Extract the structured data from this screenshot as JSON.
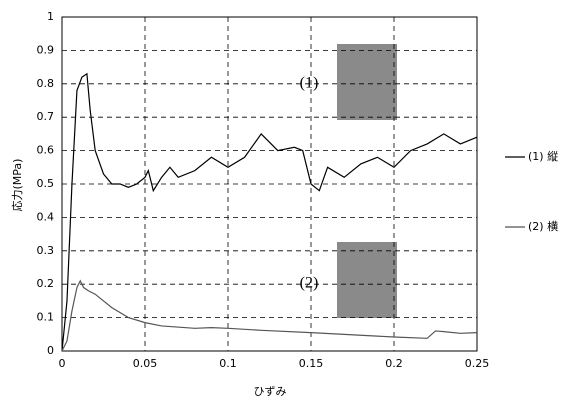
{
  "chart_data": {
    "type": "line",
    "xlabel": "ひずみ",
    "ylabel": "応力(MPa)",
    "annotations": [
      "(1)",
      "(2)"
    ],
    "series": [
      {
        "name": "(1) 縦",
        "color": "#000000",
        "x": [
          0,
          0.003,
          0.006,
          0.009,
          0.012,
          0.015,
          0.017,
          0.02,
          0.025,
          0.03,
          0.035,
          0.04,
          0.045,
          0.05,
          0.052,
          0.055,
          0.06,
          0.065,
          0.07,
          0.08,
          0.09,
          0.1,
          0.11,
          0.12,
          0.13,
          0.14,
          0.145,
          0.15,
          0.155,
          0.16,
          0.17,
          0.18,
          0.19,
          0.2,
          0.21,
          0.22,
          0.23,
          0.24,
          0.25
        ],
        "values": [
          0,
          0.15,
          0.5,
          0.78,
          0.82,
          0.83,
          0.72,
          0.6,
          0.53,
          0.5,
          0.5,
          0.49,
          0.5,
          0.52,
          0.54,
          0.48,
          0.52,
          0.55,
          0.52,
          0.54,
          0.58,
          0.55,
          0.58,
          0.65,
          0.6,
          0.61,
          0.6,
          0.5,
          0.48,
          0.55,
          0.52,
          0.56,
          0.58,
          0.55,
          0.6,
          0.62,
          0.65,
          0.62,
          0.64
        ]
      },
      {
        "name": "(2) 横",
        "color": "#555555",
        "x": [
          0,
          0.003,
          0.006,
          0.009,
          0.011,
          0.013,
          0.016,
          0.02,
          0.03,
          0.04,
          0.05,
          0.06,
          0.08,
          0.09,
          0.1,
          0.12,
          0.15,
          0.2,
          0.22,
          0.225,
          0.23,
          0.24,
          0.25
        ],
        "values": [
          0,
          0.03,
          0.12,
          0.19,
          0.21,
          0.19,
          0.18,
          0.17,
          0.13,
          0.1,
          0.085,
          0.075,
          0.068,
          0.07,
          0.068,
          0.062,
          0.055,
          0.042,
          0.038,
          0.06,
          0.058,
          0.053,
          0.055
        ]
      }
    ],
    "xlim": [
      0,
      0.25
    ],
    "xticks": [
      0,
      0.05,
      0.1,
      0.15,
      0.2,
      0.25
    ],
    "ylim": [
      0,
      1
    ],
    "yticks": [
      0,
      0.1,
      0.2,
      0.3,
      0.4,
      0.5,
      0.6,
      0.7,
      0.8,
      0.9,
      1
    ],
    "grid": true
  }
}
